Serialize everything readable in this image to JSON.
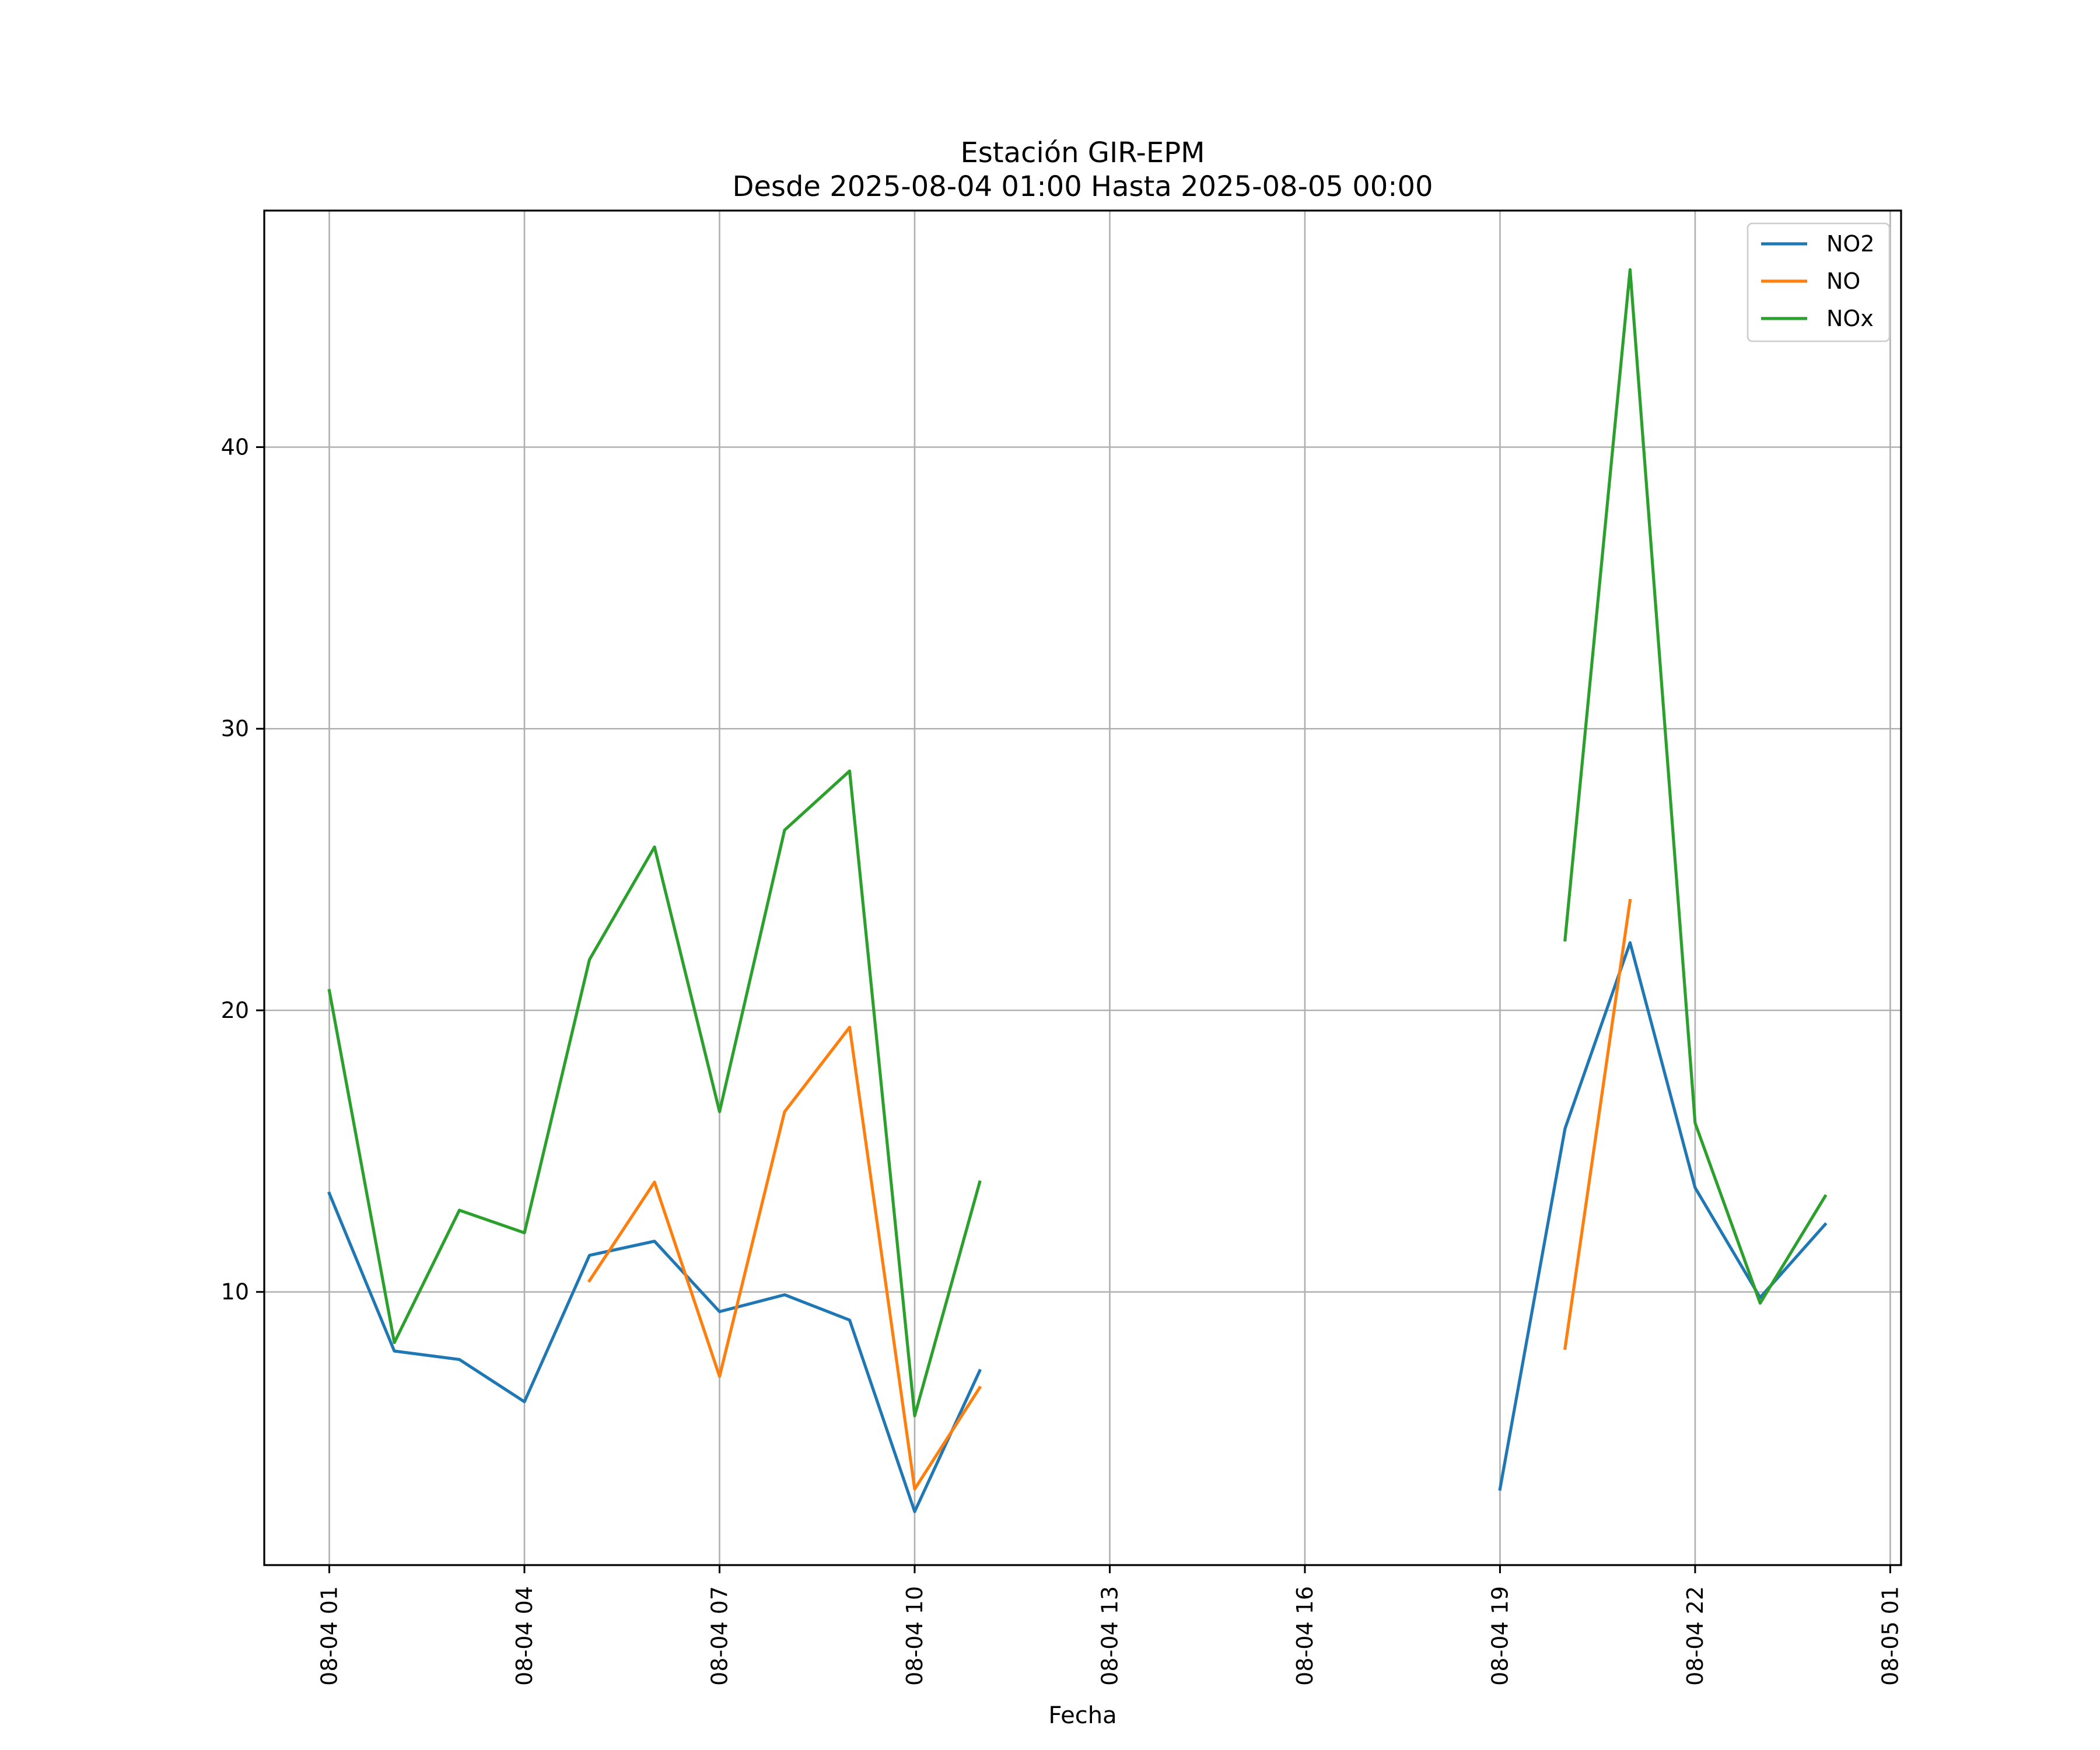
{
  "chart_data": {
    "type": "line",
    "title": "Estación GIR-EPM",
    "subtitle": "Desde 2025-08-04 01:00 Hasta 2025-08-05 00:00",
    "xlabel": "Fecha",
    "ylabel": "",
    "x_type": "datetime",
    "xlim": [
      "2025-08-04 00:00",
      "2025-08-05 01:10"
    ],
    "ylim": [
      0.3,
      48.4
    ],
    "x_ticks": [
      "2025-08-04 01:00",
      "2025-08-04 04:00",
      "2025-08-04 07:00",
      "2025-08-04 10:00",
      "2025-08-04 13:00",
      "2025-08-04 16:00",
      "2025-08-04 19:00",
      "2025-08-04 22:00",
      "2025-08-05 01:00"
    ],
    "x_tick_labels": [
      "08-04 01",
      "08-04 04",
      "08-04 07",
      "08-04 10",
      "08-04 13",
      "08-04 16",
      "08-04 19",
      "08-04 22",
      "08-05 01"
    ],
    "y_ticks": [
      10,
      20,
      30,
      40
    ],
    "y_tick_labels": [
      "10",
      "20",
      "30",
      "40"
    ],
    "grid": true,
    "legend_position": "top-right",
    "x": [
      "2025-08-04 01:00",
      "2025-08-04 02:00",
      "2025-08-04 03:00",
      "2025-08-04 04:00",
      "2025-08-04 05:00",
      "2025-08-04 06:00",
      "2025-08-04 07:00",
      "2025-08-04 08:00",
      "2025-08-04 09:00",
      "2025-08-04 10:00",
      "2025-08-04 11:00",
      "2025-08-04 12:00",
      "2025-08-04 13:00",
      "2025-08-04 14:00",
      "2025-08-04 15:00",
      "2025-08-04 16:00",
      "2025-08-04 17:00",
      "2025-08-04 18:00",
      "2025-08-04 19:00",
      "2025-08-04 20:00",
      "2025-08-04 21:00",
      "2025-08-04 22:00",
      "2025-08-04 23:00",
      "2025-08-05 00:00"
    ],
    "series": [
      {
        "name": "NO2",
        "color": "#1f77b4",
        "values": [
          13.5,
          7.9,
          7.6,
          6.1,
          11.3,
          11.8,
          9.3,
          9.9,
          9.0,
          2.2,
          7.2,
          null,
          null,
          null,
          null,
          null,
          null,
          null,
          3.0,
          15.8,
          22.4,
          13.7,
          9.8,
          12.4
        ]
      },
      {
        "name": "NO",
        "color": "#ff7f0e",
        "values": [
          null,
          null,
          null,
          null,
          10.4,
          13.9,
          7.0,
          16.4,
          19.4,
          3.0,
          6.6,
          null,
          null,
          null,
          null,
          null,
          null,
          null,
          null,
          8.0,
          23.9,
          null,
          null,
          null
        ]
      },
      {
        "name": "NOx",
        "color": "#2ca02c",
        "values": [
          20.7,
          8.2,
          12.9,
          12.1,
          21.8,
          25.8,
          16.4,
          26.4,
          28.5,
          5.6,
          13.9,
          null,
          null,
          null,
          null,
          null,
          null,
          null,
          null,
          22.5,
          46.3,
          16.0,
          9.6,
          13.4
        ]
      }
    ]
  }
}
